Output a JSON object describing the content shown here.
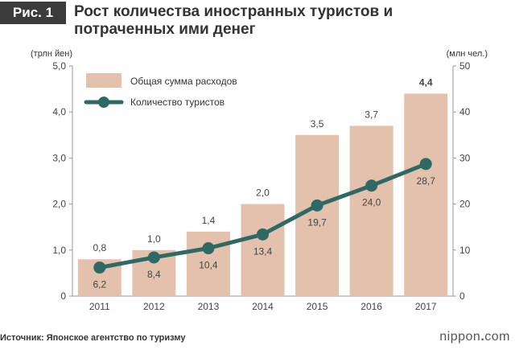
{
  "header": {
    "badge": "Рис. 1",
    "title_line1": "Рост количества иностранных туристов и",
    "title_line2": "потраченных ими денег"
  },
  "footer": {
    "source": "Источник: Японское агентство по туризму",
    "brand_prefix": "nippon",
    "brand_dot": ".",
    "brand_suffix": "com"
  },
  "colors": {
    "bar": "#e3c1ac",
    "line": "#2e6a63",
    "highlight": "#e0453a",
    "axis": "#999999"
  },
  "chart_data": {
    "type": "bar",
    "categories": [
      "2011",
      "2012",
      "2013",
      "2014",
      "2015",
      "2016",
      "2017"
    ],
    "left_unit": "(трлн йен)",
    "right_unit": "(млн чел.)",
    "y_left": {
      "min": 0,
      "max": 5,
      "ticks": [
        "0",
        "1,0",
        "2,0",
        "3,0",
        "4,0",
        "5,0"
      ]
    },
    "y_right": {
      "min": 0,
      "max": 50,
      "ticks": [
        "0",
        "10",
        "20",
        "30",
        "40",
        "50"
      ]
    },
    "series": [
      {
        "name": "Общая сумма расходов",
        "kind": "bar",
        "axis": "left",
        "values": [
          0.8,
          1.0,
          1.4,
          2.0,
          3.5,
          3.7,
          4.4
        ],
        "labels": [
          "0,8",
          "1,0",
          "1,4",
          "2,0",
          "3,5",
          "3,7",
          "4,4"
        ],
        "highlight_index": 6
      },
      {
        "name": "Количество туристов",
        "kind": "line",
        "axis": "right",
        "values": [
          6.2,
          8.4,
          10.4,
          13.4,
          19.7,
          24.0,
          28.7
        ],
        "labels": [
          "6,2",
          "8,4",
          "10,4",
          "13,4",
          "19,7",
          "24,0",
          "28,7"
        ]
      }
    ]
  }
}
